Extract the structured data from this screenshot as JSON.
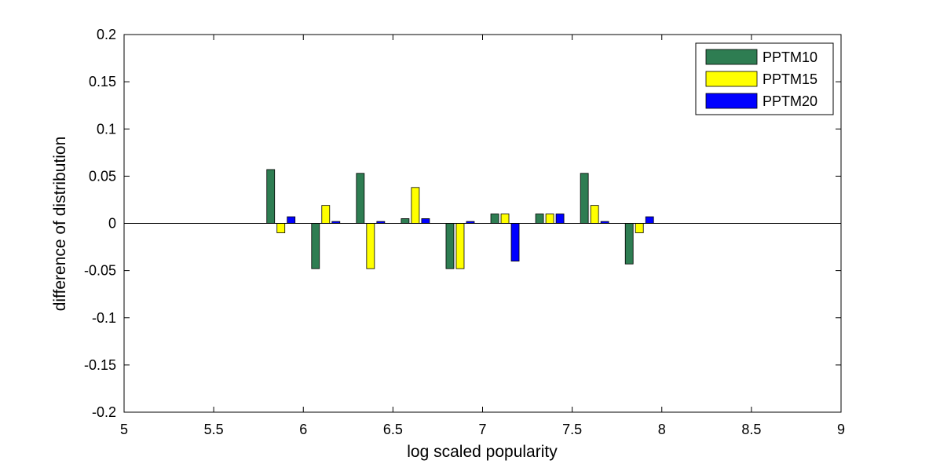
{
  "chart_data": {
    "type": "bar",
    "title": "",
    "xlabel": "log scaled popularity",
    "ylabel": "difference of distribution",
    "xlim": [
      5,
      9
    ],
    "ylim": [
      -0.2,
      0.2
    ],
    "xticks": [
      "5",
      "5.5",
      "6",
      "6.5",
      "7",
      "7.5",
      "8",
      "8.5",
      "9"
    ],
    "xtick_values": [
      5,
      5.5,
      6,
      6.5,
      7,
      7.5,
      8,
      8.5,
      9
    ],
    "yticks": [
      "0.2",
      "0.15",
      "0.1",
      "0.05",
      "0",
      "-0.05",
      "-0.1",
      "-0.15",
      "-0.2"
    ],
    "ytick_values": [
      0.2,
      0.15,
      0.1,
      0.05,
      0,
      -0.05,
      -0.1,
      -0.15,
      -0.2
    ],
    "x": [
      5.875,
      6.125,
      6.375,
      6.625,
      6.875,
      7.125,
      7.375,
      7.625,
      7.875
    ],
    "series": [
      {
        "name": "PPTM10",
        "color": "#2e7d52",
        "values": [
          0.057,
          -0.048,
          0.053,
          0.005,
          -0.048,
          0.01,
          0.01,
          0.053,
          -0.043
        ]
      },
      {
        "name": "PPTM15",
        "color": "#ffff00",
        "values": [
          -0.01,
          0.019,
          -0.048,
          0.038,
          -0.048,
          0.01,
          0.01,
          0.019,
          -0.01
        ]
      },
      {
        "name": "PPTM20",
        "color": "#0000ff",
        "values": [
          0.007,
          0.002,
          0.002,
          0.005,
          0.002,
          -0.04,
          0.01,
          0.002,
          0.007
        ]
      }
    ],
    "legend_position": "top-right",
    "grid": false
  }
}
